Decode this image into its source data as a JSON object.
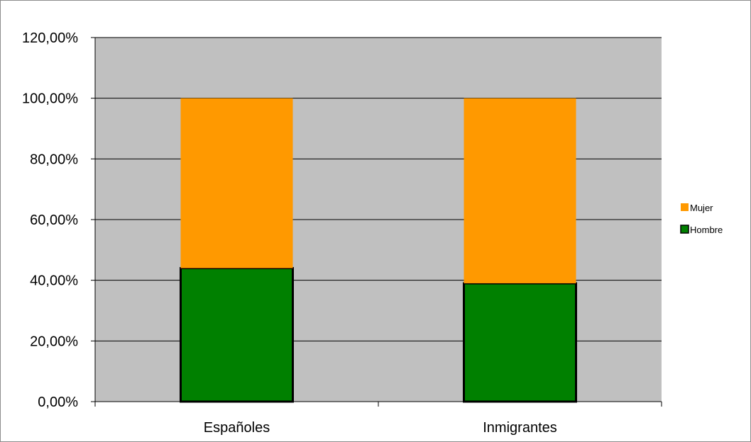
{
  "chart_data": {
    "type": "bar",
    "stacked": true,
    "categories": [
      "Españoles",
      "Inmigrantes"
    ],
    "series": [
      {
        "name": "Hombre",
        "values": [
          0.44,
          0.39
        ],
        "color": "#008000"
      },
      {
        "name": "Mujer",
        "values": [
          0.56,
          0.61
        ],
        "color": "#ff9900"
      }
    ],
    "ylim": [
      0,
      1.2
    ],
    "yticks": [
      0,
      0.2,
      0.4,
      0.6,
      0.8,
      1.0,
      1.2
    ],
    "ytick_labels": [
      "0,00%",
      "20,00%",
      "40,00%",
      "60,00%",
      "80,00%",
      "100,00%",
      "120,00%"
    ],
    "title": "",
    "xlabel": "",
    "ylabel": "",
    "grid": true,
    "legend_position": "right",
    "legend_order": [
      "Mujer",
      "Hombre"
    ],
    "plot_background": "#c0c0c0",
    "gridline_color": "#000000"
  }
}
